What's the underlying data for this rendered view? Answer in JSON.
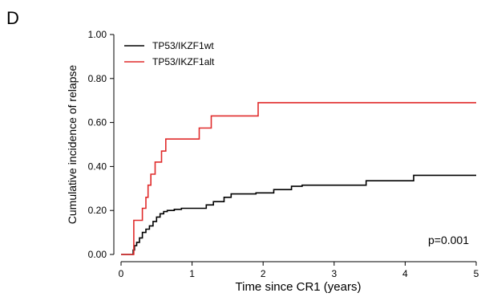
{
  "chart_data": {
    "type": "line",
    "panel_label": "D",
    "xlabel": "Time since CR1 (years)",
    "ylabel": "Cumulative incidence of relapse",
    "xlim": [
      0,
      5
    ],
    "ylim": [
      0,
      1
    ],
    "x_ticks": [
      "0",
      "1",
      "2",
      "3",
      "4",
      "5"
    ],
    "y_ticks": [
      "0.00",
      "0.20",
      "0.40",
      "0.60",
      "0.80",
      "1.00"
    ],
    "grid": false,
    "legend_position": "top-left",
    "annotation": "p=0.001",
    "series": [
      {
        "name": "TP53/IKZF1wt",
        "color": "#000000",
        "x": [
          0,
          0.17,
          0.19,
          0.22,
          0.26,
          0.3,
          0.35,
          0.4,
          0.45,
          0.5,
          0.55,
          0.6,
          0.65,
          0.75,
          0.85,
          1.2,
          1.3,
          1.45,
          1.55,
          1.9,
          2.15,
          2.4,
          2.55,
          3.45,
          4.12,
          5.0
        ],
        "y": [
          0,
          0.02,
          0.04,
          0.055,
          0.075,
          0.1,
          0.115,
          0.13,
          0.15,
          0.17,
          0.185,
          0.195,
          0.2,
          0.205,
          0.21,
          0.225,
          0.24,
          0.26,
          0.275,
          0.28,
          0.295,
          0.31,
          0.315,
          0.335,
          0.36,
          0.36
        ]
      },
      {
        "name": "TP53/IKZF1alt",
        "color": "#e02b2b",
        "x": [
          0,
          0.18,
          0.3,
          0.35,
          0.38,
          0.42,
          0.48,
          0.57,
          0.63,
          1.1,
          1.27,
          1.93,
          5.0
        ],
        "y": [
          0,
          0.155,
          0.21,
          0.26,
          0.315,
          0.365,
          0.42,
          0.47,
          0.525,
          0.575,
          0.63,
          0.69,
          0.69
        ]
      }
    ]
  }
}
